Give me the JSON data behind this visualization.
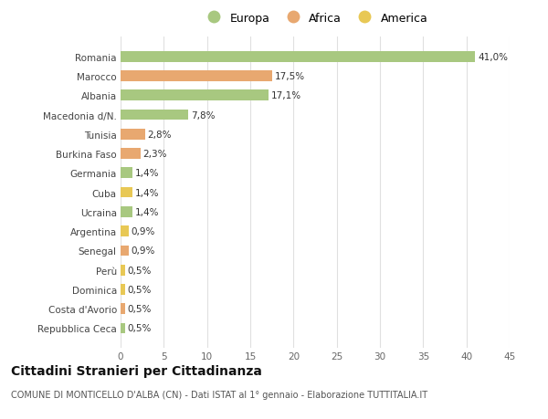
{
  "categories": [
    "Repubblica Ceca",
    "Costa d'Avorio",
    "Dominica",
    "Perù",
    "Senegal",
    "Argentina",
    "Ucraina",
    "Cuba",
    "Germania",
    "Burkina Faso",
    "Tunisia",
    "Macedonia d/N.",
    "Albania",
    "Marocco",
    "Romania"
  ],
  "values": [
    0.5,
    0.5,
    0.5,
    0.5,
    0.9,
    0.9,
    1.4,
    1.4,
    1.4,
    2.3,
    2.8,
    7.8,
    17.1,
    17.5,
    41.0
  ],
  "labels": [
    "0,5%",
    "0,5%",
    "0,5%",
    "0,5%",
    "0,9%",
    "0,9%",
    "1,4%",
    "1,4%",
    "1,4%",
    "2,3%",
    "2,8%",
    "7,8%",
    "17,1%",
    "17,5%",
    "41,0%"
  ],
  "continent": [
    "Europa",
    "Africa",
    "America",
    "America",
    "Africa",
    "America",
    "Europa",
    "America",
    "Europa",
    "Africa",
    "Africa",
    "Europa",
    "Europa",
    "Africa",
    "Europa"
  ],
  "colors": {
    "Europa": "#a8c880",
    "Africa": "#e8a870",
    "America": "#e8c855"
  },
  "legend": [
    "Europa",
    "Africa",
    "America"
  ],
  "legend_colors": [
    "#a8c880",
    "#e8a870",
    "#e8c855"
  ],
  "title": "Cittadini Stranieri per Cittadinanza",
  "subtitle": "COMUNE DI MONTICELLO D'ALBA (CN) - Dati ISTAT al 1° gennaio - Elaborazione TUTTITALIA.IT",
  "xlim": [
    0,
    45
  ],
  "xticks": [
    0,
    5,
    10,
    15,
    20,
    25,
    30,
    35,
    40,
    45
  ],
  "background_color": "#ffffff",
  "grid_color": "#e0e0e0",
  "bar_height": 0.55,
  "label_fontsize": 7.5,
  "tick_fontsize": 7.5,
  "title_fontsize": 10,
  "subtitle_fontsize": 7
}
